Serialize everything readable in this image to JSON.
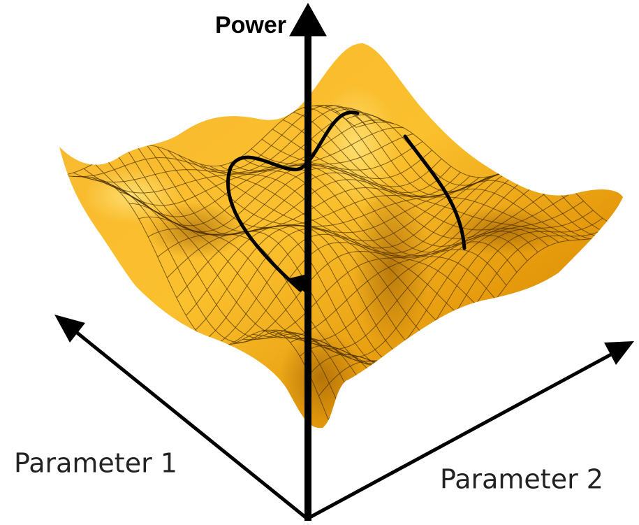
{
  "labels": {
    "vertical_axis": "Power",
    "axis_1": "Parameter 1",
    "axis_2": "Parameter 2"
  }
}
